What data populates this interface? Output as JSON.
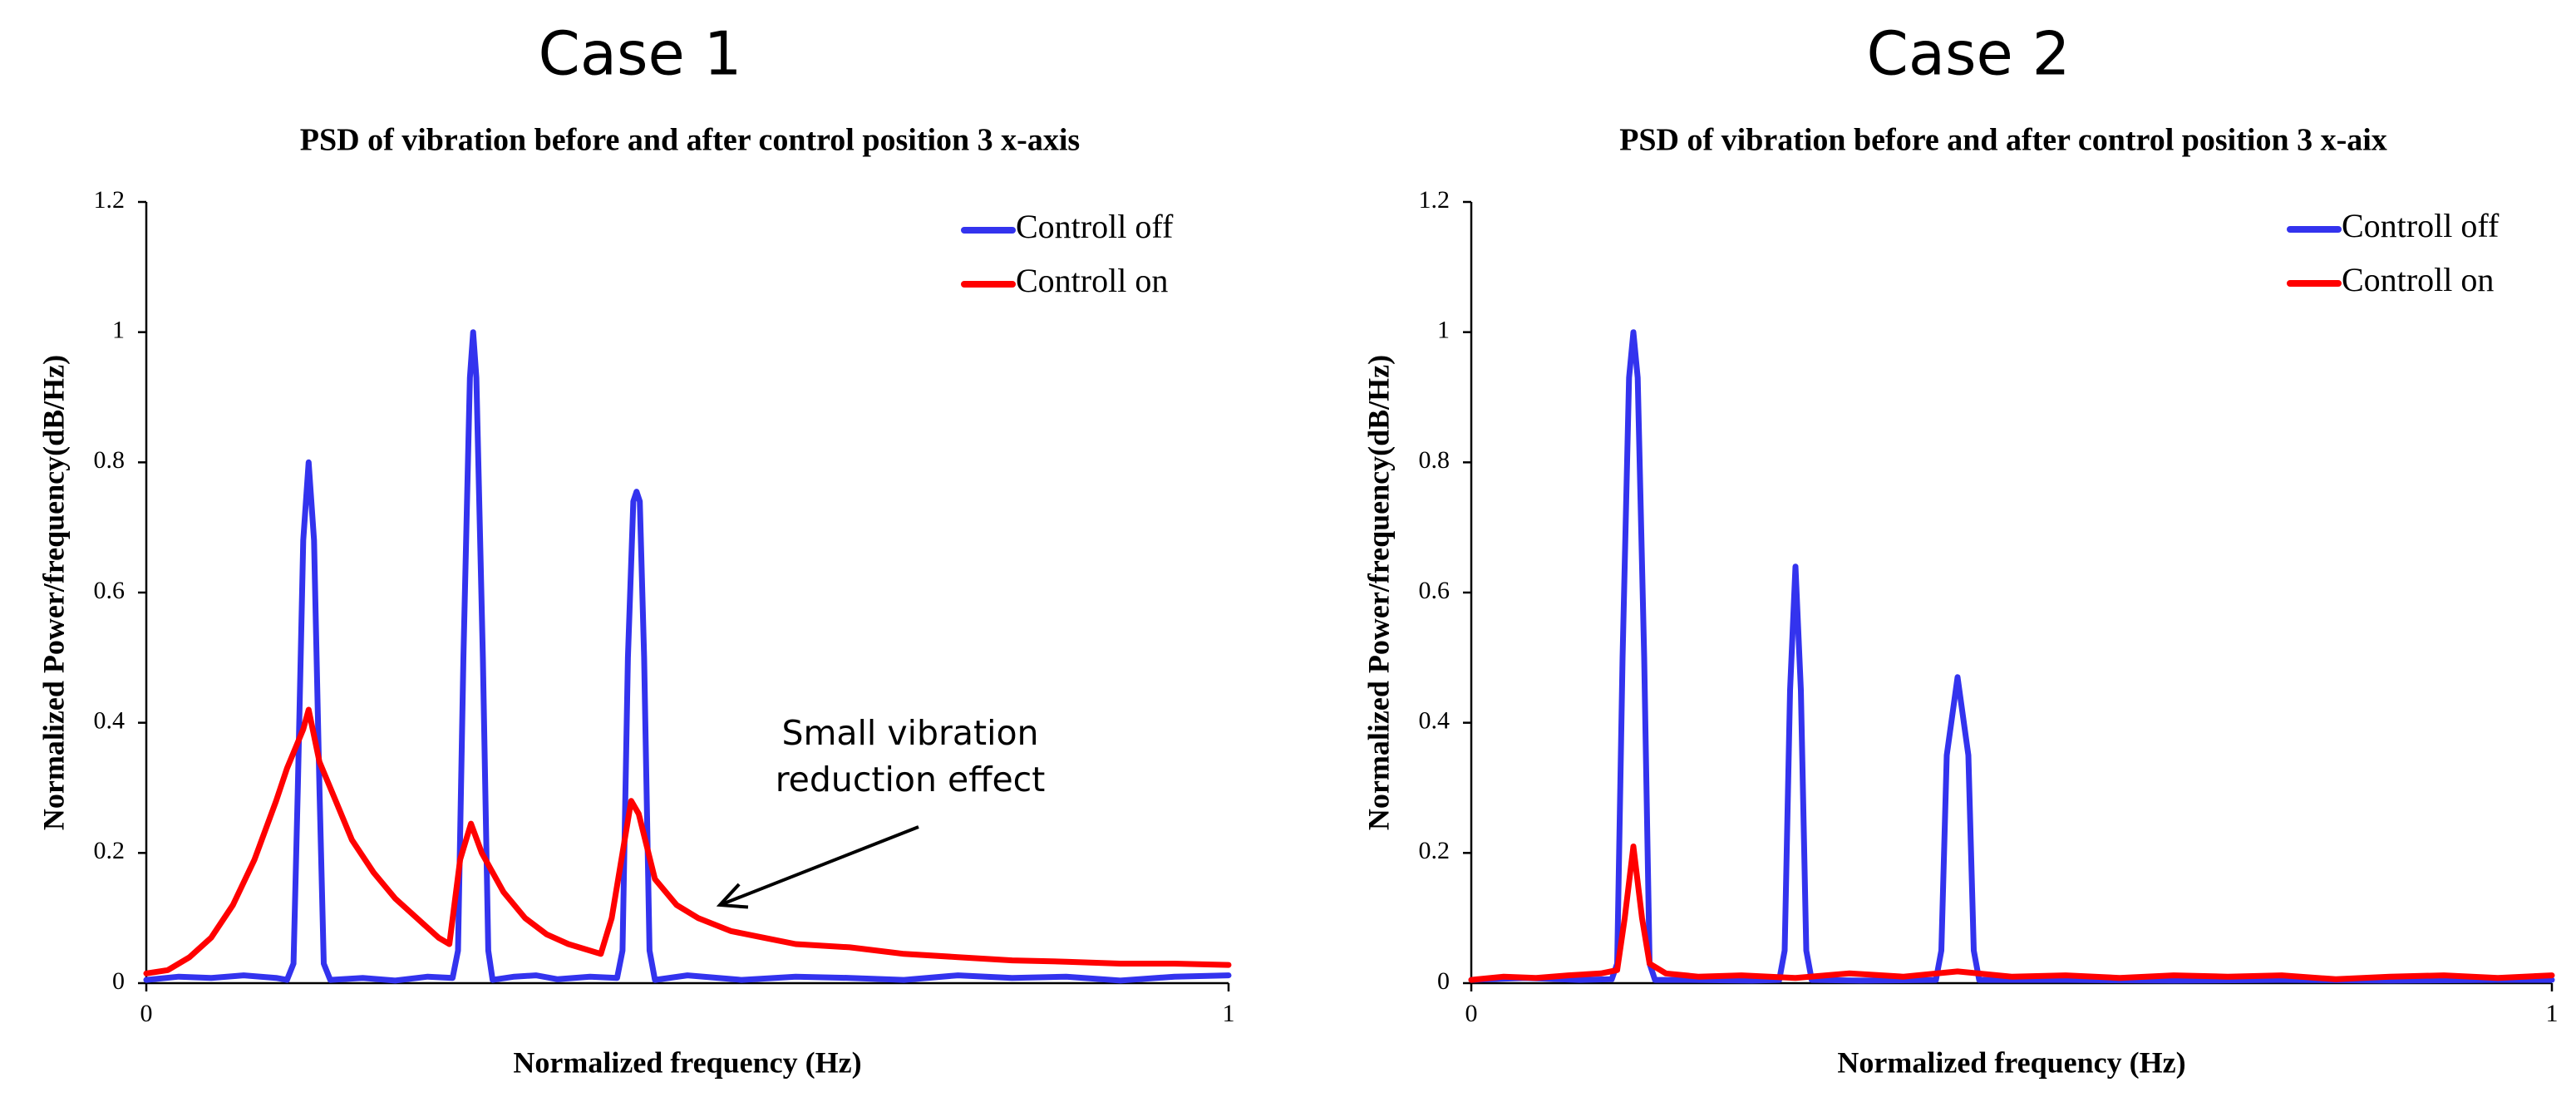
{
  "chart_data": [
    {
      "type": "line",
      "heading": "Case 1",
      "title": "PSD of vibration before and after control position 3 x-axis",
      "xlabel": "Normalized  frequency  (Hz)",
      "ylabel": "Normalized  Power/frequency(dB/Hz)",
      "xlim": [
        0,
        1
      ],
      "ylim": [
        0,
        1.2
      ],
      "x_ticks": [
        0,
        1
      ],
      "x_tick_labels": [
        "0",
        "1"
      ],
      "y_ticks": [
        0,
        0.2,
        0.4,
        0.6,
        0.8,
        1,
        1.2
      ],
      "y_tick_labels": [
        "0",
        "0.2",
        "0.4",
        "0.6",
        "0.8",
        "1",
        "1.2"
      ],
      "legend_position": "top-right",
      "annotation": {
        "lines": [
          "Small vibration",
          "reduction effect"
        ],
        "x": 0.53,
        "y": 0.12
      },
      "series": [
        {
          "name": "Controll off",
          "color": "#3333ee",
          "points": [
            [
              0,
              0.005
            ],
            [
              0.03,
              0.01
            ],
            [
              0.06,
              0.008
            ],
            [
              0.09,
              0.012
            ],
            [
              0.12,
              0.008
            ],
            [
              0.13,
              0.005
            ],
            [
              0.136,
              0.03
            ],
            [
              0.14,
              0.3
            ],
            [
              0.145,
              0.68
            ],
            [
              0.15,
              0.8
            ],
            [
              0.155,
              0.68
            ],
            [
              0.16,
              0.3
            ],
            [
              0.164,
              0.03
            ],
            [
              0.17,
              0.005
            ],
            [
              0.2,
              0.008
            ],
            [
              0.23,
              0.004
            ],
            [
              0.26,
              0.01
            ],
            [
              0.283,
              0.008
            ],
            [
              0.288,
              0.05
            ],
            [
              0.293,
              0.5
            ],
            [
              0.299,
              0.93
            ],
            [
              0.302,
              1.0
            ],
            [
              0.305,
              0.93
            ],
            [
              0.311,
              0.5
            ],
            [
              0.316,
              0.05
            ],
            [
              0.32,
              0.005
            ],
            [
              0.34,
              0.01
            ],
            [
              0.36,
              0.012
            ],
            [
              0.38,
              0.006
            ],
            [
              0.41,
              0.01
            ],
            [
              0.435,
              0.008
            ],
            [
              0.44,
              0.05
            ],
            [
              0.445,
              0.5
            ],
            [
              0.45,
              0.74
            ],
            [
              0.453,
              0.755
            ],
            [
              0.456,
              0.74
            ],
            [
              0.46,
              0.5
            ],
            [
              0.465,
              0.05
            ],
            [
              0.47,
              0.005
            ],
            [
              0.5,
              0.012
            ],
            [
              0.55,
              0.005
            ],
            [
              0.6,
              0.01
            ],
            [
              0.65,
              0.008
            ],
            [
              0.7,
              0.005
            ],
            [
              0.75,
              0.012
            ],
            [
              0.8,
              0.008
            ],
            [
              0.85,
              0.01
            ],
            [
              0.9,
              0.004
            ],
            [
              0.95,
              0.01
            ],
            [
              1.0,
              0.012
            ]
          ]
        },
        {
          "name": "Controll on",
          "color": "#ff0000",
          "points": [
            [
              0,
              0.015
            ],
            [
              0.02,
              0.02
            ],
            [
              0.04,
              0.04
            ],
            [
              0.06,
              0.07
            ],
            [
              0.08,
              0.12
            ],
            [
              0.1,
              0.19
            ],
            [
              0.12,
              0.28
            ],
            [
              0.13,
              0.33
            ],
            [
              0.14,
              0.37
            ],
            [
              0.145,
              0.39
            ],
            [
              0.15,
              0.42
            ],
            [
              0.155,
              0.38
            ],
            [
              0.16,
              0.34
            ],
            [
              0.175,
              0.28
            ],
            [
              0.19,
              0.22
            ],
            [
              0.21,
              0.17
            ],
            [
              0.23,
              0.13
            ],
            [
              0.25,
              0.1
            ],
            [
              0.27,
              0.07
            ],
            [
              0.28,
              0.06
            ],
            [
              0.29,
              0.19
            ],
            [
              0.3,
              0.245
            ],
            [
              0.31,
              0.2
            ],
            [
              0.33,
              0.14
            ],
            [
              0.35,
              0.1
            ],
            [
              0.37,
              0.075
            ],
            [
              0.39,
              0.06
            ],
            [
              0.42,
              0.045
            ],
            [
              0.43,
              0.1
            ],
            [
              0.44,
              0.2
            ],
            [
              0.448,
              0.28
            ],
            [
              0.455,
              0.26
            ],
            [
              0.47,
              0.16
            ],
            [
              0.49,
              0.12
            ],
            [
              0.51,
              0.1
            ],
            [
              0.54,
              0.08
            ],
            [
              0.57,
              0.07
            ],
            [
              0.6,
              0.06
            ],
            [
              0.65,
              0.055
            ],
            [
              0.7,
              0.045
            ],
            [
              0.75,
              0.04
            ],
            [
              0.8,
              0.035
            ],
            [
              0.85,
              0.033
            ],
            [
              0.9,
              0.03
            ],
            [
              0.95,
              0.03
            ],
            [
              1.0,
              0.028
            ]
          ]
        }
      ]
    },
    {
      "type": "line",
      "heading": "Case 2",
      "title": "PSD of vibration before and after control position 3 x-aix",
      "xlabel": "Normalized  frequency  (Hz)",
      "ylabel": "Normalized  Power/frequency(dB/Hz)",
      "xlim": [
        0,
        1
      ],
      "ylim": [
        0,
        1.2
      ],
      "x_ticks": [
        0,
        1
      ],
      "x_tick_labels": [
        "0",
        "1"
      ],
      "y_ticks": [
        0,
        0.2,
        0.4,
        0.6,
        0.8,
        1,
        1.2
      ],
      "y_tick_labels": [
        "0",
        "0.2",
        "0.4",
        "0.6",
        "0.8",
        "1",
        "1.2"
      ],
      "legend_position": "top-right",
      "series": [
        {
          "name": "Controll off",
          "color": "#3333ee",
          "points": [
            [
              0,
              0.005
            ],
            [
              0.05,
              0.008
            ],
            [
              0.1,
              0.005
            ],
            [
              0.13,
              0.006
            ],
            [
              0.135,
              0.03
            ],
            [
              0.14,
              0.5
            ],
            [
              0.146,
              0.93
            ],
            [
              0.15,
              1.0
            ],
            [
              0.154,
              0.93
            ],
            [
              0.16,
              0.5
            ],
            [
              0.165,
              0.03
            ],
            [
              0.17,
              0.005
            ],
            [
              0.2,
              0.005
            ],
            [
              0.26,
              0.004
            ],
            [
              0.285,
              0.005
            ],
            [
              0.29,
              0.05
            ],
            [
              0.295,
              0.45
            ],
            [
              0.3,
              0.64
            ],
            [
              0.305,
              0.45
            ],
            [
              0.31,
              0.05
            ],
            [
              0.315,
              0.005
            ],
            [
              0.36,
              0.004
            ],
            [
              0.43,
              0.005
            ],
            [
              0.435,
              0.05
            ],
            [
              0.44,
              0.35
            ],
            [
              0.45,
              0.47
            ],
            [
              0.46,
              0.35
            ],
            [
              0.465,
              0.05
            ],
            [
              0.47,
              0.005
            ],
            [
              0.55,
              0.005
            ],
            [
              0.65,
              0.004
            ],
            [
              0.75,
              0.005
            ],
            [
              0.85,
              0.004
            ],
            [
              0.95,
              0.005
            ],
            [
              1.0,
              0.005
            ]
          ]
        },
        {
          "name": "Controll on",
          "color": "#ff0000",
          "points": [
            [
              0,
              0.005
            ],
            [
              0.03,
              0.01
            ],
            [
              0.06,
              0.008
            ],
            [
              0.09,
              0.012
            ],
            [
              0.12,
              0.015
            ],
            [
              0.135,
              0.02
            ],
            [
              0.142,
              0.1
            ],
            [
              0.15,
              0.21
            ],
            [
              0.158,
              0.1
            ],
            [
              0.165,
              0.03
            ],
            [
              0.18,
              0.015
            ],
            [
              0.21,
              0.01
            ],
            [
              0.25,
              0.012
            ],
            [
              0.3,
              0.008
            ],
            [
              0.35,
              0.015
            ],
            [
              0.4,
              0.01
            ],
            [
              0.45,
              0.018
            ],
            [
              0.5,
              0.01
            ],
            [
              0.55,
              0.012
            ],
            [
              0.6,
              0.008
            ],
            [
              0.65,
              0.012
            ],
            [
              0.7,
              0.01
            ],
            [
              0.75,
              0.012
            ],
            [
              0.8,
              0.006
            ],
            [
              0.85,
              0.01
            ],
            [
              0.9,
              0.012
            ],
            [
              0.95,
              0.008
            ],
            [
              1.0,
              0.012
            ]
          ]
        }
      ]
    }
  ]
}
